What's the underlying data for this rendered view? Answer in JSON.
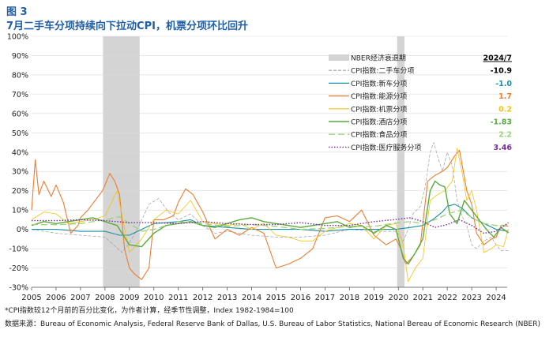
{
  "figure_label": "图 3",
  "title": "7月二手车分项持续向下拉动CPI，机票分项环比回升",
  "footnote": "*CPI指数较12个月前的百分比变化，为作者计算，经季节性调整，Index 1982-1984=100",
  "source": "数据来源：Bureau of Economic Analysis, Federal Reserve Bank of Dallas, U.S. Bureau of Labor Statistics, National Bereau of Economic Research (NBER)",
  "chart_data": {
    "type": "line",
    "xlim": [
      2005,
      2024.45
    ],
    "ylim": [
      -30,
      100
    ],
    "y_ticks": [
      -30,
      -20,
      -10,
      0,
      10,
      20,
      30,
      40,
      50,
      60,
      70,
      80,
      90,
      100
    ],
    "y_tick_labels": [
      "-30%",
      "-20%",
      "-10%",
      "0%",
      "10%",
      "20%",
      "30%",
      "40%",
      "50%",
      "60%",
      "70%",
      "80%",
      "90%",
      "100%"
    ],
    "x_ticks": [
      2005,
      2006,
      2007,
      2008,
      2009,
      2010,
      2011,
      2012,
      2013,
      2014,
      2015,
      2016,
      2017,
      2018,
      2019,
      2020,
      2021,
      2022,
      2023,
      2024
    ],
    "x_tick_labels": [
      "2005",
      "2006",
      "2007",
      "2008",
      "2009",
      "2010",
      "2011",
      "2012",
      "2013",
      "2014",
      "2015",
      "2016",
      "2017",
      "2018",
      "2019",
      "2020",
      "2021",
      "2022",
      "2023",
      "2024"
    ],
    "recessions": [
      {
        "start": 2007.92,
        "end": 2009.42
      },
      {
        "start": 2019.95,
        "end": 2020.25
      }
    ],
    "recession_label": "NBER经济衰退期",
    "latest_header": "2024/7",
    "series": [
      {
        "name": "CPI指数:二手车分项",
        "latest": "-10.9",
        "color": "#9e9e9e",
        "dash": "4,2",
        "width": 0.7,
        "x": [
          2005,
          2006,
          2007,
          2008,
          2008.7,
          2009,
          2009.4,
          2009.8,
          2010.2,
          2010.6,
          2011,
          2011.5,
          2012,
          2012.5,
          2013,
          2014,
          2015,
          2016,
          2017,
          2018,
          2019,
          2019.9,
          2020.2,
          2020.4,
          2020.6,
          2020.9,
          2021.1,
          2021.3,
          2021.45,
          2021.6,
          2021.8,
          2022,
          2022.2,
          2022.4,
          2022.6,
          2022.8,
          2023,
          2023.2,
          2023.5,
          2023.8,
          2024,
          2024.2,
          2024.5
        ],
        "y": [
          0,
          -2,
          -3,
          -4,
          -12,
          -7,
          2,
          13,
          16,
          9,
          5,
          8,
          2,
          -2,
          -1,
          -3,
          -4,
          -4,
          -3,
          0,
          -1,
          -1,
          -6,
          0,
          8,
          12,
          22,
          40,
          45,
          38,
          30,
          40,
          33,
          15,
          7,
          2,
          -8,
          -10,
          -6,
          -4,
          -8,
          -11,
          -10.9
        ]
      },
      {
        "name": "CPI指数:新车分项",
        "latest": "-1.0",
        "color": "#1a8fa0",
        "dash": "",
        "width": 1.1,
        "x": [
          2005,
          2006,
          2007,
          2008,
          2008.6,
          2009,
          2009.5,
          2010,
          2011,
          2011.5,
          2012,
          2013,
          2014,
          2015,
          2016,
          2017,
          2018,
          2019,
          2019.9,
          2020.5,
          2021,
          2021.4,
          2021.8,
          2022,
          2022.3,
          2022.6,
          2023,
          2023.5,
          2024,
          2024.5
        ],
        "y": [
          0,
          0,
          -1,
          -1,
          -3,
          -3,
          0,
          3,
          4,
          5,
          2,
          1,
          0,
          0,
          0,
          -1,
          0,
          0,
          0,
          1,
          2,
          5,
          9,
          12,
          13,
          11,
          6,
          3,
          0,
          -1
        ]
      },
      {
        "name": "CPI指数:能源分项",
        "latest": "1.7",
        "color": "#ed7d31",
        "dash": "",
        "width": 1.1,
        "x": [
          2005,
          2005.15,
          2005.3,
          2005.5,
          2005.8,
          2006,
          2006.3,
          2006.6,
          2006.9,
          2007,
          2007.3,
          2007.6,
          2007.9,
          2008.2,
          2008.4,
          2008.6,
          2008.8,
          2009,
          2009.2,
          2009.5,
          2009.8,
          2010,
          2010.4,
          2010.8,
          2011,
          2011.3,
          2011.6,
          2012,
          2012.5,
          2013,
          2013.5,
          2014,
          2014.5,
          2015,
          2015.5,
          2016,
          2016.5,
          2017,
          2017.5,
          2018,
          2018.5,
          2019,
          2019.5,
          2019.9,
          2020.1,
          2020.3,
          2020.6,
          2020.9,
          2021,
          2021.2,
          2021.5,
          2021.8,
          2022,
          2022.3,
          2022.5,
          2022.8,
          2023,
          2023.2,
          2023.5,
          2023.8,
          2024,
          2024.2,
          2024.5
        ],
        "y": [
          10,
          36,
          18,
          25,
          17,
          23,
          14,
          -2,
          2,
          6,
          10,
          15,
          20,
          29,
          25,
          18,
          -10,
          -20,
          -23,
          -26,
          -20,
          5,
          5,
          7,
          14,
          21,
          18,
          9,
          -5,
          0,
          -3,
          1,
          -2,
          -20,
          -18,
          -15,
          -10,
          6,
          7,
          4,
          10,
          -3,
          -8,
          -5,
          -10,
          -18,
          -14,
          -8,
          3,
          25,
          28,
          30,
          32,
          38,
          41,
          20,
          13,
          -2,
          -8,
          -5,
          -4,
          2,
          1.7
        ]
      },
      {
        "name": "CPI指数:机票分项",
        "latest": "0.2",
        "color": "#f2c314",
        "dash": "",
        "width": 0.8,
        "x": [
          2005,
          2005.5,
          2006,
          2006.5,
          2007,
          2007.5,
          2008,
          2008.5,
          2009,
          2009.5,
          2010,
          2010.5,
          2011,
          2011.5,
          2012,
          2012.5,
          2013,
          2013.5,
          2014,
          2014.5,
          2015,
          2015.5,
          2016,
          2016.5,
          2017,
          2017.5,
          2018,
          2018.5,
          2019,
          2019.5,
          2019.9,
          2020.2,
          2020.4,
          2020.7,
          2021,
          2021.3,
          2021.6,
          2021.9,
          2022.2,
          2022.4,
          2022.6,
          2022.8,
          2023,
          2023.2,
          2023.5,
          2023.8,
          2024,
          2024.3,
          2024.5
        ],
        "y": [
          5,
          9,
          8,
          3,
          4,
          5,
          7,
          20,
          -12,
          -5,
          5,
          10,
          8,
          15,
          4,
          3,
          2,
          3,
          0,
          3,
          -3,
          -4,
          -6,
          -6,
          -1,
          1,
          3,
          2,
          -5,
          2,
          3,
          -8,
          -27,
          -20,
          -15,
          15,
          18,
          20,
          25,
          42,
          30,
          15,
          20,
          10,
          -12,
          -10,
          -8,
          -9,
          0.2
        ]
      },
      {
        "name": "CPI指数:酒店分项",
        "latest": "-1.83",
        "color": "#5aab3c",
        "dash": "",
        "width": 1.4,
        "x": [
          2005,
          2005.5,
          2006,
          2006.5,
          2007,
          2007.5,
          2008,
          2008.5,
          2009,
          2009.5,
          2010,
          2010.5,
          2011,
          2011.5,
          2012,
          2012.5,
          2013,
          2013.5,
          2014,
          2014.5,
          2015,
          2015.5,
          2016,
          2016.5,
          2017,
          2017.5,
          2018,
          2018.5,
          2019,
          2019.5,
          2019.9,
          2020.2,
          2020.4,
          2020.7,
          2021,
          2021.3,
          2021.5,
          2021.7,
          2021.9,
          2022.1,
          2022.4,
          2022.7,
          2023,
          2023.3,
          2023.6,
          2023.9,
          2024.2,
          2024.5
        ],
        "y": [
          2,
          4,
          3,
          4,
          5,
          6,
          4,
          2,
          -8,
          -9,
          -2,
          2,
          3,
          4,
          2,
          1,
          3,
          5,
          6,
          4,
          3,
          2,
          1,
          2,
          3,
          4,
          1,
          2,
          -2,
          2,
          0,
          -15,
          -18,
          -12,
          -5,
          20,
          25,
          23,
          22,
          8,
          3,
          15,
          10,
          5,
          0,
          -4,
          1,
          -1.83
        ]
      },
      {
        "name": "CPI指数:食品分项",
        "latest": "2.2",
        "color": "#9bd27a",
        "dash": "8,4",
        "width": 1.3,
        "x": [
          2005,
          2006,
          2007,
          2008,
          2008.6,
          2009,
          2009.5,
          2010,
          2011,
          2012,
          2013,
          2014,
          2015,
          2016,
          2017,
          2018,
          2019,
          2020,
          2020.5,
          2021,
          2021.5,
          2022,
          2022.6,
          2023,
          2023.5,
          2024,
          2024.5
        ],
        "y": [
          2.5,
          2.4,
          3,
          5,
          6.5,
          3,
          -1,
          0,
          4,
          3,
          1.5,
          2.5,
          1.5,
          0,
          0.5,
          1.5,
          1.5,
          3.5,
          4,
          3,
          5,
          8,
          10,
          6,
          3,
          2,
          2.2
        ]
      },
      {
        "name": "CPI指数:医疗服务分项",
        "latest": "3.46",
        "color": "#7a2c9e",
        "dash": "1.5,2",
        "width": 1.4,
        "x": [
          2005,
          2006,
          2007,
          2008,
          2009,
          2010,
          2011,
          2012,
          2013,
          2014,
          2015,
          2016,
          2017,
          2018,
          2019,
          2019.8,
          2020.5,
          2021,
          2021.5,
          2022,
          2022.5,
          2023,
          2023.5,
          2024,
          2024.5
        ],
        "y": [
          4.5,
          4.5,
          5,
          4.5,
          3.5,
          3.5,
          3,
          4,
          3,
          2.5,
          2.5,
          3.5,
          2,
          2,
          4,
          5,
          6,
          4,
          1,
          2.5,
          5,
          2,
          -2,
          -1,
          3.46
        ]
      }
    ]
  }
}
